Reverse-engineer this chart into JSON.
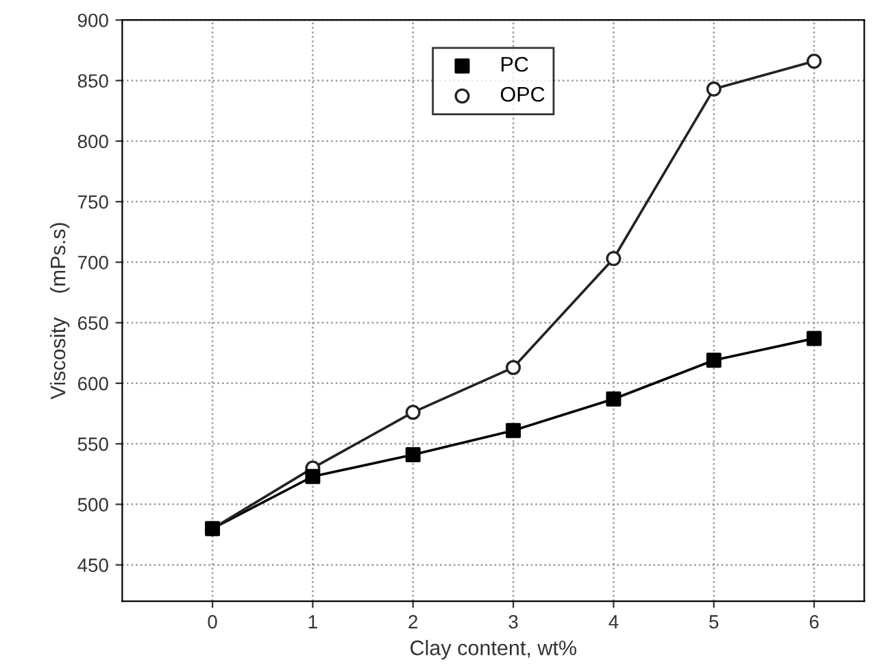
{
  "chart_data": {
    "type": "line",
    "xlabel": "Clay content, wt%",
    "ylabel": "Viscosity    (mPs.s)",
    "x": [
      0,
      1,
      2,
      3,
      4,
      5,
      6
    ],
    "series": [
      {
        "name": "PC",
        "color": "#000000",
        "marker": "square",
        "values": [
          480,
          523,
          541,
          561,
          587,
          619,
          637
        ]
      },
      {
        "name": "OPC",
        "color": "#222222",
        "marker": "circle",
        "values": [
          480,
          530,
          576,
          613,
          703,
          843,
          866
        ]
      }
    ],
    "xlim": [
      -0.9,
      6.5
    ],
    "xticks": [
      0,
      1,
      2,
      3,
      4,
      5,
      6
    ],
    "ylim": [
      420,
      900
    ],
    "yticks": [
      450,
      500,
      550,
      600,
      650,
      700,
      750,
      800,
      850,
      900
    ],
    "grid": true,
    "legend": "top",
    "line_style": "solid"
  }
}
